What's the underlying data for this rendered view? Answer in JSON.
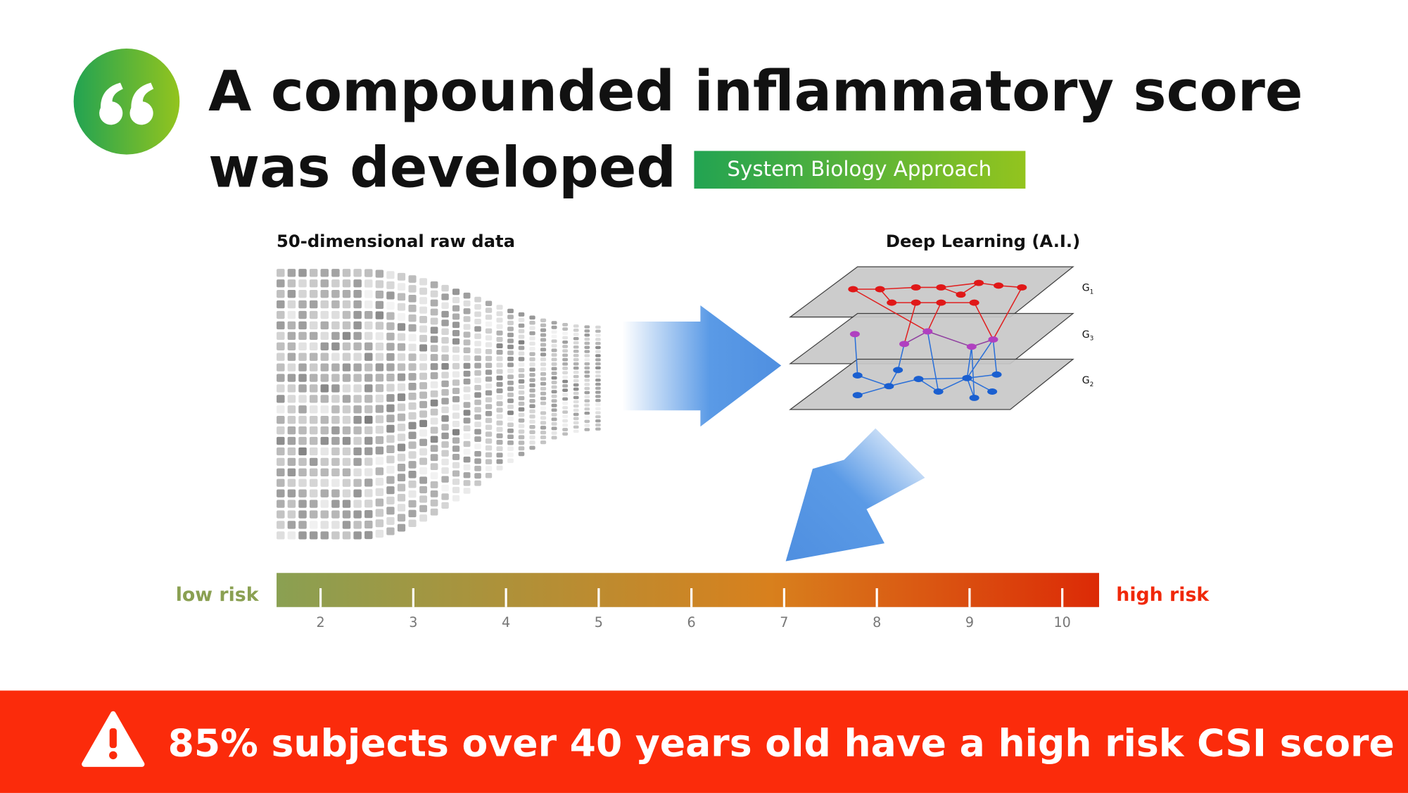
{
  "header": {
    "title_line1": "A compounded inflammatory score",
    "title_line2": "was developed",
    "badge": "System Biology Approach"
  },
  "diagram": {
    "input_label": "50-dimensional raw data",
    "model_label": "Deep Learning  (A.I.)",
    "layers": [
      {
        "letter": "G",
        "index": "1"
      },
      {
        "letter": "G",
        "index": "3"
      },
      {
        "letter": "G",
        "index": "2"
      }
    ]
  },
  "scale": {
    "low_label": "low risk",
    "high_label": "high risk",
    "ticks": [
      2,
      3,
      4,
      5,
      6,
      7,
      8,
      9,
      10
    ]
  },
  "banner": {
    "text": "85% subjects over 40 years old have a high risk CSI score"
  }
}
